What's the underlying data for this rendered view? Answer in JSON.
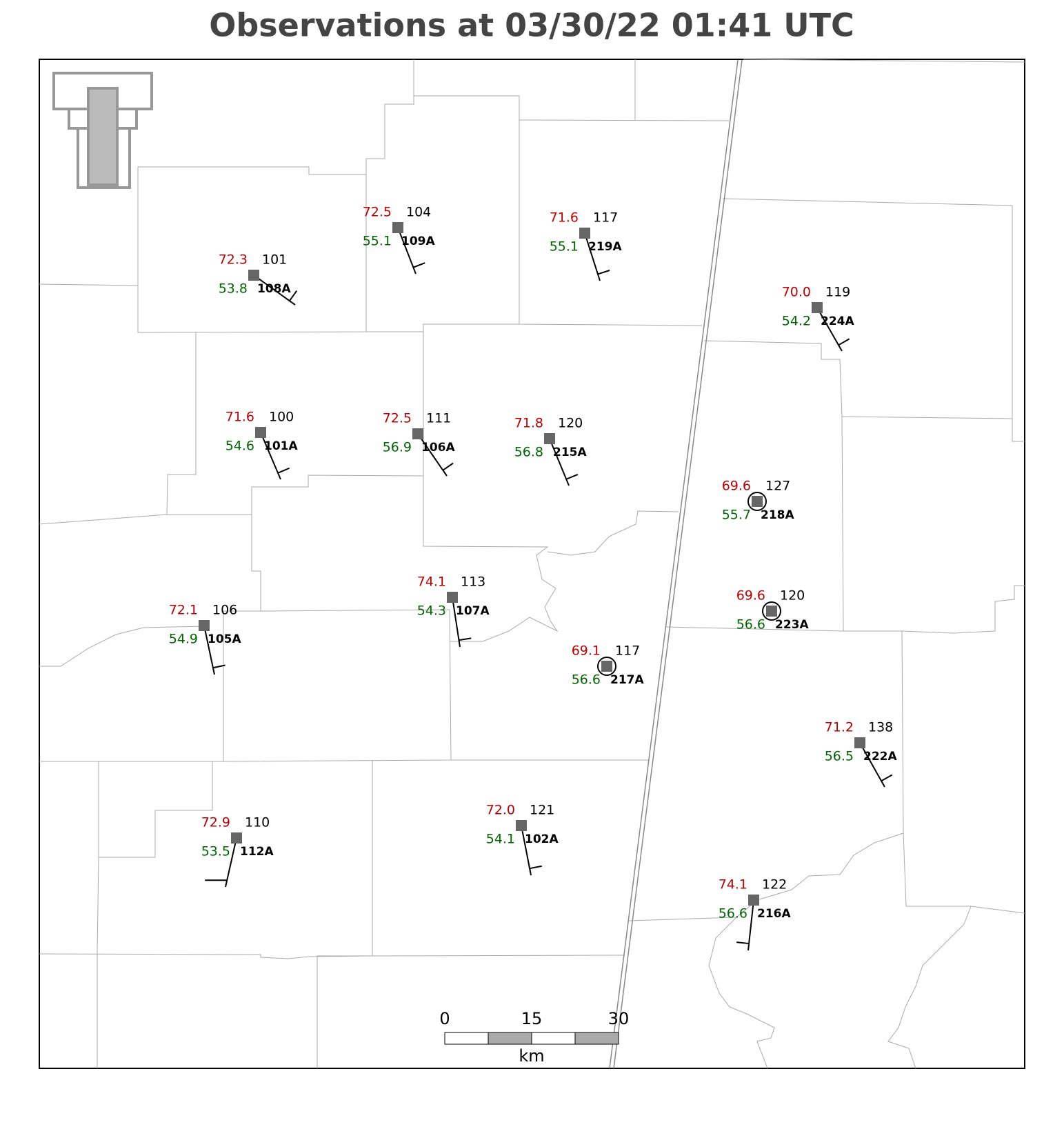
{
  "title": "Observations at 03/30/22 01:41 UTC",
  "stations": [
    {
      "id": "108A",
      "temperature": "72.3",
      "dewpoint": "53.8",
      "pressure": "101"
    },
    {
      "id": "109A",
      "temperature": "72.5",
      "dewpoint": "55.1",
      "pressure": "104"
    },
    {
      "id": "219A",
      "temperature": "71.6",
      "dewpoint": "55.1",
      "pressure": "117"
    },
    {
      "id": "224A",
      "temperature": "70.0",
      "dewpoint": "54.2",
      "pressure": "119"
    },
    {
      "id": "101A",
      "temperature": "71.6",
      "dewpoint": "54.6",
      "pressure": "100"
    },
    {
      "id": "106A",
      "temperature": "72.5",
      "dewpoint": "56.9",
      "pressure": "111"
    },
    {
      "id": "215A",
      "temperature": "71.8",
      "dewpoint": "56.8",
      "pressure": "120"
    },
    {
      "id": "218A",
      "temperature": "69.6",
      "dewpoint": "55.7",
      "pressure": "127"
    },
    {
      "id": "223A",
      "temperature": "69.6",
      "dewpoint": "56.6",
      "pressure": "120"
    },
    {
      "id": "107A",
      "temperature": "74.1",
      "dewpoint": "54.3",
      "pressure": "113"
    },
    {
      "id": "105A",
      "temperature": "72.1",
      "dewpoint": "54.9",
      "pressure": "106"
    },
    {
      "id": "217A",
      "temperature": "69.1",
      "dewpoint": "56.6",
      "pressure": "117"
    },
    {
      "id": "222A",
      "temperature": "71.2",
      "dewpoint": "56.5",
      "pressure": "138"
    },
    {
      "id": "112A",
      "temperature": "72.9",
      "dewpoint": "53.5",
      "pressure": "110"
    },
    {
      "id": "102A",
      "temperature": "72.0",
      "dewpoint": "54.1",
      "pressure": "121"
    },
    {
      "id": "216A",
      "temperature": "74.1",
      "dewpoint": "56.6",
      "pressure": "122"
    }
  ],
  "scale_bar": {
    "labels": [
      "0",
      "15",
      "30"
    ],
    "unit": "km"
  }
}
